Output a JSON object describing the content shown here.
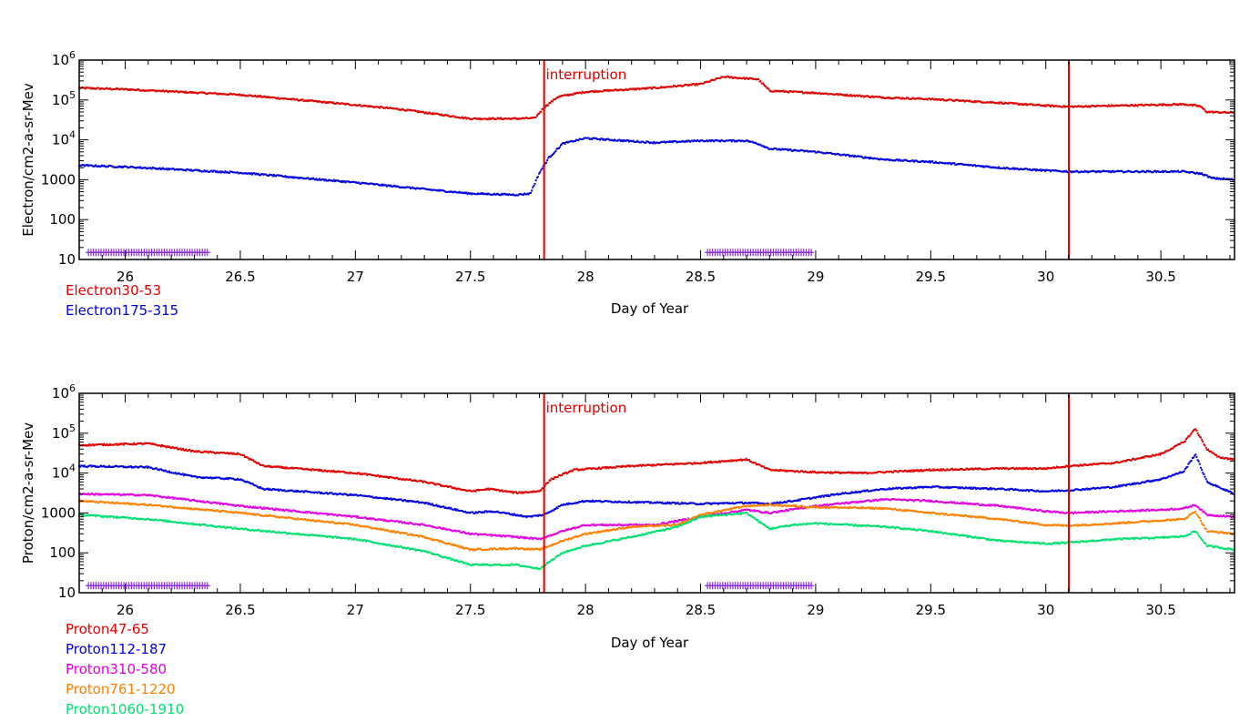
{
  "chart_data": [
    {
      "type": "scatter",
      "ylabel": "Electron/cm2-a-sr-Mev",
      "xlabel": "Day of Year",
      "xlim": [
        25.8,
        30.82
      ],
      "ylim": [
        10,
        1000000
      ],
      "yscale": "log",
      "x_ticks": [
        "26",
        "26.5",
        "27",
        "27.5",
        "28",
        "28.5",
        "29",
        "29.5",
        "30",
        "30.5"
      ],
      "y_ticks": [
        {
          "v": 10,
          "base": "10",
          "exp": ""
        },
        {
          "v": 100,
          "base": "100",
          "exp": ""
        },
        {
          "v": 1000,
          "base": "1000",
          "exp": ""
        },
        {
          "v": 10000,
          "base": "10",
          "exp": "4"
        },
        {
          "v": 100000,
          "base": "10",
          "exp": "5"
        },
        {
          "v": 1000000,
          "base": "10",
          "exp": "6"
        }
      ],
      "vlines": [
        27.82,
        30.1
      ],
      "vline_color": "#e00000",
      "annotation": {
        "text": "interruption",
        "x": 27.82
      },
      "marker_bands": [
        [
          25.84,
          26.36
        ],
        [
          28.53,
          28.99
        ]
      ],
      "marker_color": "#8a2be2",
      "series": [
        {
          "name": "Electron30-53",
          "color": "#e00000",
          "points": [
            [
              25.8,
              200000
            ],
            [
              26.0,
              185000
            ],
            [
              26.5,
              135000
            ],
            [
              27.0,
              75000
            ],
            [
              27.2,
              58000
            ],
            [
              27.5,
              34000
            ],
            [
              27.7,
              34000
            ],
            [
              27.78,
              35000
            ],
            [
              27.82,
              65000
            ],
            [
              27.88,
              120000
            ],
            [
              28.0,
              160000
            ],
            [
              28.3,
              200000
            ],
            [
              28.5,
              250000
            ],
            [
              28.6,
              380000
            ],
            [
              28.75,
              330000
            ],
            [
              28.8,
              170000
            ],
            [
              29.0,
              150000
            ],
            [
              29.3,
              115000
            ],
            [
              29.5,
              105000
            ],
            [
              29.8,
              85000
            ],
            [
              30.0,
              72000
            ],
            [
              30.1,
              68000
            ],
            [
              30.3,
              72000
            ],
            [
              30.6,
              78000
            ],
            [
              30.67,
              70000
            ],
            [
              30.7,
              50000
            ],
            [
              30.82,
              48000
            ]
          ]
        },
        {
          "name": "Electron175-315",
          "color": "#0000e0",
          "points": [
            [
              25.8,
              2300
            ],
            [
              26.0,
              2100
            ],
            [
              26.5,
              1500
            ],
            [
              27.0,
              850
            ],
            [
              27.5,
              450
            ],
            [
              27.7,
              420
            ],
            [
              27.76,
              450
            ],
            [
              27.8,
              1500
            ],
            [
              27.84,
              3500
            ],
            [
              27.9,
              8000
            ],
            [
              28.0,
              11000
            ],
            [
              28.3,
              8500
            ],
            [
              28.5,
              9500
            ],
            [
              28.7,
              9500
            ],
            [
              28.75,
              8000
            ],
            [
              28.8,
              6000
            ],
            [
              29.0,
              5000
            ],
            [
              29.3,
              3200
            ],
            [
              29.5,
              2800
            ],
            [
              29.8,
              2000
            ],
            [
              30.0,
              1700
            ],
            [
              30.1,
              1600
            ],
            [
              30.3,
              1600
            ],
            [
              30.6,
              1600
            ],
            [
              30.68,
              1400
            ],
            [
              30.72,
              1100
            ],
            [
              30.82,
              1000
            ]
          ]
        }
      ]
    },
    {
      "type": "scatter",
      "ylabel": "Proton/cm2-a-sr-Mev",
      "xlabel": "Day of Year",
      "xlim": [
        25.8,
        30.82
      ],
      "ylim": [
        10,
        1000000
      ],
      "yscale": "log",
      "x_ticks": [
        "26",
        "26.5",
        "27",
        "27.5",
        "28",
        "28.5",
        "29",
        "29.5",
        "30",
        "30.5"
      ],
      "y_ticks": [
        {
          "v": 10,
          "base": "10",
          "exp": ""
        },
        {
          "v": 100,
          "base": "100",
          "exp": ""
        },
        {
          "v": 1000,
          "base": "1000",
          "exp": ""
        },
        {
          "v": 10000,
          "base": "10",
          "exp": "4"
        },
        {
          "v": 100000,
          "base": "10",
          "exp": "5"
        },
        {
          "v": 1000000,
          "base": "10",
          "exp": "6"
        }
      ],
      "vlines": [
        27.82,
        30.1
      ],
      "vline_color": "#e00000",
      "annotation": {
        "text": "interruption",
        "x": 27.82
      },
      "marker_bands": [
        [
          25.84,
          26.36
        ],
        [
          28.53,
          28.99
        ]
      ],
      "marker_color": "#8a2be2",
      "series": [
        {
          "name": "Proton47-65",
          "color": "#e00000",
          "points": [
            [
              25.8,
              50000
            ],
            [
              26.1,
              55000
            ],
            [
              26.3,
              35000
            ],
            [
              26.5,
              30000
            ],
            [
              26.6,
              15000
            ],
            [
              27.0,
              10000
            ],
            [
              27.3,
              6000
            ],
            [
              27.5,
              3500
            ],
            [
              27.55,
              3800
            ],
            [
              27.58,
              4000
            ],
            [
              27.7,
              3200
            ],
            [
              27.8,
              3500
            ],
            [
              27.85,
              7000
            ],
            [
              27.95,
              12000
            ],
            [
              28.2,
              15000
            ],
            [
              28.5,
              18000
            ],
            [
              28.7,
              22000
            ],
            [
              28.8,
              12000
            ],
            [
              29.0,
              10500
            ],
            [
              29.2,
              10000
            ],
            [
              29.5,
              12000
            ],
            [
              29.8,
              13000
            ],
            [
              30.0,
              13000
            ],
            [
              30.1,
              15000
            ],
            [
              30.3,
              18000
            ],
            [
              30.5,
              30000
            ],
            [
              30.6,
              60000
            ],
            [
              30.65,
              130000
            ],
            [
              30.7,
              40000
            ],
            [
              30.75,
              25000
            ],
            [
              30.82,
              22000
            ]
          ]
        },
        {
          "name": "Proton112-187",
          "color": "#0000e0",
          "points": [
            [
              25.8,
              15000
            ],
            [
              26.1,
              14000
            ],
            [
              26.3,
              8000
            ],
            [
              26.5,
              7000
            ],
            [
              26.6,
              4000
            ],
            [
              27.0,
              2800
            ],
            [
              27.3,
              1800
            ],
            [
              27.5,
              1000
            ],
            [
              27.6,
              1100
            ],
            [
              27.75,
              800
            ],
            [
              27.82,
              900
            ],
            [
              27.9,
              1600
            ],
            [
              28.0,
              2000
            ],
            [
              28.5,
              1700
            ],
            [
              28.7,
              1800
            ],
            [
              28.8,
              1700
            ],
            [
              28.9,
              2000
            ],
            [
              29.1,
              3000
            ],
            [
              29.3,
              4000
            ],
            [
              29.5,
              4500
            ],
            [
              29.8,
              4000
            ],
            [
              30.0,
              3500
            ],
            [
              30.1,
              3700
            ],
            [
              30.3,
              4500
            ],
            [
              30.5,
              7000
            ],
            [
              30.6,
              11000
            ],
            [
              30.65,
              30000
            ],
            [
              30.7,
              6000
            ],
            [
              30.82,
              3000
            ]
          ]
        },
        {
          "name": "Proton310-580",
          "color": "#e000e0",
          "points": [
            [
              25.8,
              3000
            ],
            [
              26.1,
              2800
            ],
            [
              26.5,
              1500
            ],
            [
              27.0,
              800
            ],
            [
              27.3,
              500
            ],
            [
              27.5,
              300
            ],
            [
              27.7,
              250
            ],
            [
              27.8,
              220
            ],
            [
              27.9,
              350
            ],
            [
              28.0,
              500
            ],
            [
              28.3,
              500
            ],
            [
              28.5,
              800
            ],
            [
              28.7,
              1200
            ],
            [
              28.8,
              1000
            ],
            [
              29.0,
              1500
            ],
            [
              29.3,
              2200
            ],
            [
              29.5,
              2000
            ],
            [
              29.8,
              1500
            ],
            [
              30.0,
              1100
            ],
            [
              30.1,
              1000
            ],
            [
              30.3,
              1100
            ],
            [
              30.5,
              1200
            ],
            [
              30.6,
              1300
            ],
            [
              30.65,
              1600
            ],
            [
              30.7,
              900
            ],
            [
              30.82,
              800
            ]
          ]
        },
        {
          "name": "Proton761-1220",
          "color": "#ff8000",
          "points": [
            [
              25.8,
              2000
            ],
            [
              26.1,
              1600
            ],
            [
              26.5,
              1000
            ],
            [
              27.0,
              500
            ],
            [
              27.3,
              250
            ],
            [
              27.5,
              120
            ],
            [
              27.7,
              130
            ],
            [
              27.8,
              120
            ],
            [
              27.9,
              200
            ],
            [
              28.0,
              300
            ],
            [
              28.2,
              450
            ],
            [
              28.4,
              500
            ],
            [
              28.5,
              900
            ],
            [
              28.7,
              1500
            ],
            [
              28.8,
              1600
            ],
            [
              29.0,
              1400
            ],
            [
              29.3,
              1300
            ],
            [
              29.5,
              1000
            ],
            [
              29.8,
              700
            ],
            [
              30.0,
              500
            ],
            [
              30.1,
              480
            ],
            [
              30.3,
              550
            ],
            [
              30.5,
              650
            ],
            [
              30.6,
              700
            ],
            [
              30.65,
              1100
            ],
            [
              30.7,
              350
            ],
            [
              30.82,
              300
            ]
          ]
        },
        {
          "name": "Proton1060-1910",
          "color": "#00e070",
          "points": [
            [
              25.8,
              900
            ],
            [
              26.1,
              700
            ],
            [
              26.5,
              400
            ],
            [
              27.0,
              220
            ],
            [
              27.3,
              110
            ],
            [
              27.5,
              50
            ],
            [
              27.7,
              50
            ],
            [
              27.8,
              40
            ],
            [
              27.9,
              100
            ],
            [
              28.0,
              150
            ],
            [
              28.2,
              250
            ],
            [
              28.4,
              450
            ],
            [
              28.5,
              800
            ],
            [
              28.7,
              1000
            ],
            [
              28.8,
              400
            ],
            [
              28.9,
              500
            ],
            [
              29.0,
              550
            ],
            [
              29.3,
              450
            ],
            [
              29.5,
              350
            ],
            [
              29.8,
              200
            ],
            [
              30.0,
              170
            ],
            [
              30.1,
              180
            ],
            [
              30.3,
              220
            ],
            [
              30.5,
              240
            ],
            [
              30.6,
              260
            ],
            [
              30.65,
              350
            ],
            [
              30.7,
              150
            ],
            [
              30.82,
              120
            ]
          ]
        }
      ]
    }
  ]
}
